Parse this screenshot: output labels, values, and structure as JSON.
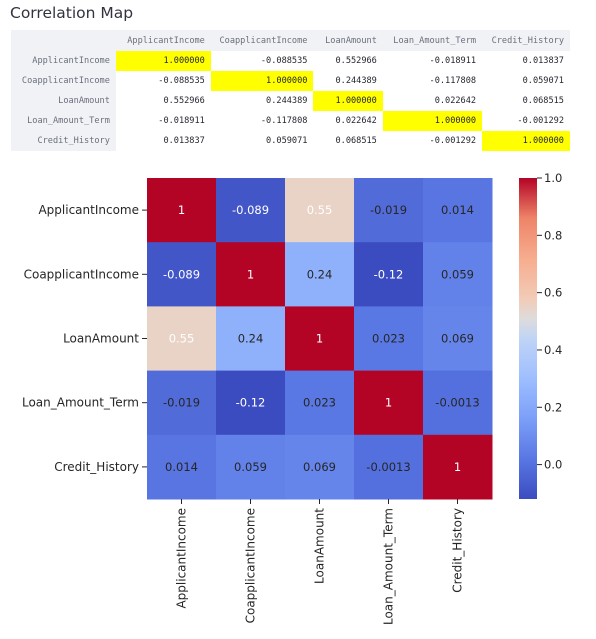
{
  "page": {
    "title": "Correlation Map"
  },
  "table": {
    "columns": [
      "ApplicantIncome",
      "CoapplicantIncome",
      "LoanAmount",
      "Loan_Amount_Term",
      "Credit_History"
    ],
    "rows": [
      {
        "label": "ApplicantIncome",
        "cells": [
          "1.000000",
          "-0.088535",
          "0.552966",
          "-0.018911",
          "0.013837"
        ]
      },
      {
        "label": "CoapplicantIncome",
        "cells": [
          "-0.088535",
          "1.000000",
          "0.244389",
          "-0.117808",
          "0.059071"
        ]
      },
      {
        "label": "LoanAmount",
        "cells": [
          "0.552966",
          "0.244389",
          "1.000000",
          "0.022642",
          "0.068515"
        ]
      },
      {
        "label": "Loan_Amount_Term",
        "cells": [
          "-0.018911",
          "-0.117808",
          "0.022642",
          "1.000000",
          "-0.001292"
        ]
      },
      {
        "label": "Credit_History",
        "cells": [
          "0.013837",
          "0.059071",
          "0.068515",
          "-0.001292",
          "1.000000"
        ]
      }
    ],
    "highlight_color": "#ffff00"
  },
  "chart_data": {
    "type": "heatmap",
    "x_labels": [
      "ApplicantIncome",
      "CoapplicantIncome",
      "LoanAmount",
      "Loan_Amount_Term",
      "Credit_History"
    ],
    "y_labels": [
      "ApplicantIncome",
      "CoapplicantIncome",
      "LoanAmount",
      "Loan_Amount_Term",
      "Credit_History"
    ],
    "values": [
      [
        1,
        -0.089,
        0.55,
        -0.019,
        0.014
      ],
      [
        -0.089,
        1,
        0.24,
        -0.12,
        0.059
      ],
      [
        0.55,
        0.24,
        1,
        0.023,
        0.069
      ],
      [
        -0.019,
        -0.12,
        0.023,
        1,
        -0.0013
      ],
      [
        0.014,
        0.059,
        0.069,
        -0.0013,
        1
      ]
    ],
    "annotations": [
      [
        "1",
        "-0.089",
        "0.55",
        "-0.019",
        "0.014"
      ],
      [
        "-0.089",
        "1",
        "0.24",
        "-0.12",
        "0.059"
      ],
      [
        "0.55",
        "0.24",
        "1",
        "0.023",
        "0.069"
      ],
      [
        "-0.019",
        "-0.12",
        "0.023",
        "1",
        "-0.0013"
      ],
      [
        "0.014",
        "0.059",
        "0.069",
        "-0.0013",
        "1"
      ]
    ],
    "colormap": "coolwarm",
    "colorbar": {
      "range": [
        -0.12,
        1.0
      ],
      "ticks": [
        0.0,
        0.2,
        0.4,
        0.6,
        0.8,
        1.0
      ],
      "tick_labels": [
        "0.0",
        "0.2",
        "0.4",
        "0.6",
        "0.8",
        "1.0"
      ]
    },
    "title": "",
    "xlabel": "",
    "ylabel": ""
  }
}
